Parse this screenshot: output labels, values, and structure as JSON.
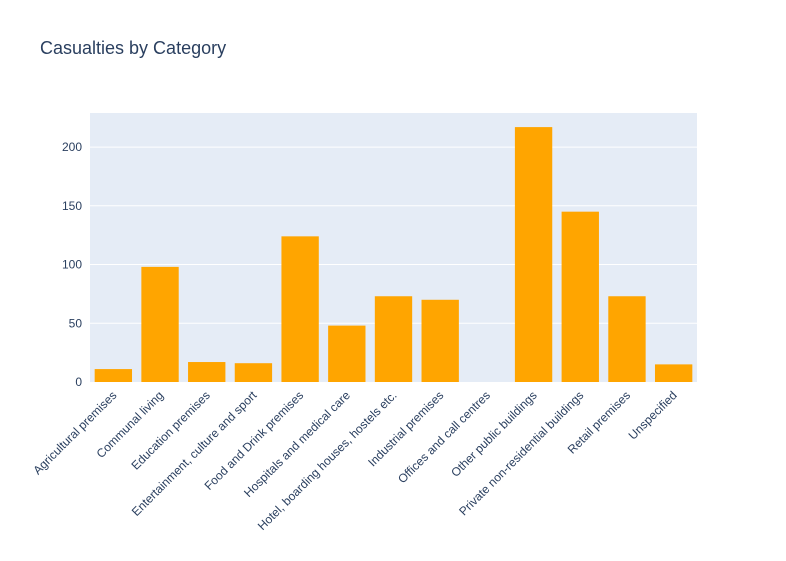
{
  "chart_data": {
    "type": "bar",
    "title": "Casualties by Category",
    "xlabel": "",
    "ylabel": "",
    "categories": [
      "Agricultural premises",
      "Communal living",
      "Education premises",
      "Entertainment, culture and sport",
      "Food and Drink premises",
      "Hospitals and medical care",
      "Hotel, boarding houses, hostels etc.",
      "Industrial premises",
      "Offices and call centres",
      "Other public buildings",
      "Private non-residential buildings",
      "Retail premises",
      "Unspecified"
    ],
    "values": [
      11,
      98,
      17,
      16,
      124,
      48,
      73,
      70,
      0,
      217,
      145,
      73,
      15
    ],
    "ylim": [
      0,
      229
    ],
    "yticks": [
      0,
      50,
      100,
      150,
      200
    ],
    "grid": true,
    "bar_color": "#FFA500",
    "plot_bg": "#E5ECF6"
  }
}
